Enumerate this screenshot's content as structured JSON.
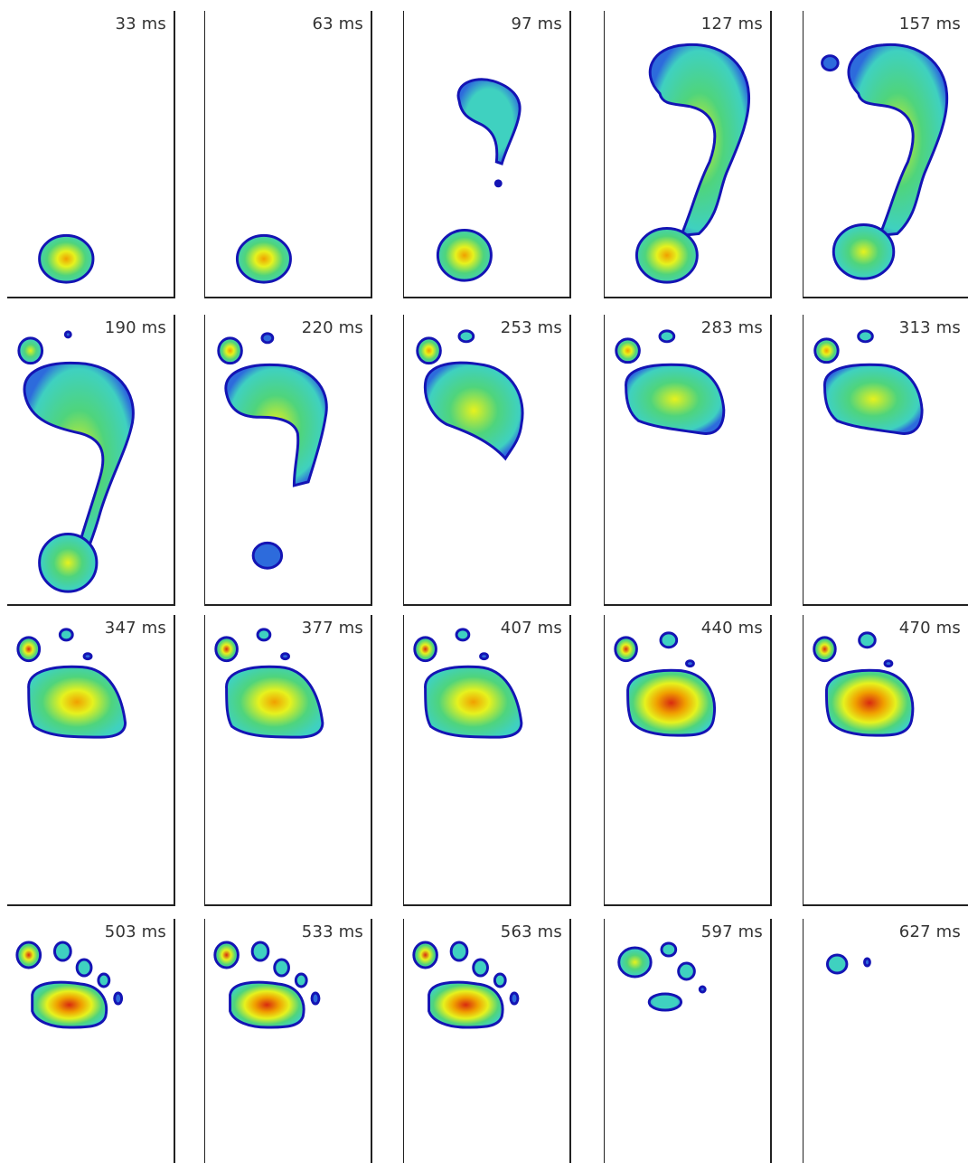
{
  "colors": {
    "outline": "#1414b4",
    "low": "#2d6bdc",
    "mid": "#3fd1c0",
    "green": "#4fd47c",
    "yellow": "#e6f21e",
    "orange": "#f0a000",
    "red": "#d82a10",
    "frame_border": "#222222"
  },
  "frames": [
    {
      "label": "33 ms",
      "phase": 0
    },
    {
      "label": "63 ms",
      "phase": 0
    },
    {
      "label": "97 ms",
      "phase": 1
    },
    {
      "label": "127 ms",
      "phase": 2
    },
    {
      "label": "157 ms",
      "phase": 3
    },
    {
      "label": "190 ms",
      "phase": 4
    },
    {
      "label": "220 ms",
      "phase": 5
    },
    {
      "label": "253 ms",
      "phase": 6
    },
    {
      "label": "283 ms",
      "phase": 7
    },
    {
      "label": "313 ms",
      "phase": 7
    },
    {
      "label": "347 ms",
      "phase": 8
    },
    {
      "label": "377 ms",
      "phase": 8
    },
    {
      "label": "407 ms",
      "phase": 8
    },
    {
      "label": "440 ms",
      "phase": 9
    },
    {
      "label": "470 ms",
      "phase": 9
    },
    {
      "label": "503 ms",
      "phase": 10
    },
    {
      "label": "533 ms",
      "phase": 10
    },
    {
      "label": "563 ms",
      "phase": 10
    },
    {
      "label": "597 ms",
      "phase": 11
    },
    {
      "label": "627 ms",
      "phase": 12
    }
  ]
}
